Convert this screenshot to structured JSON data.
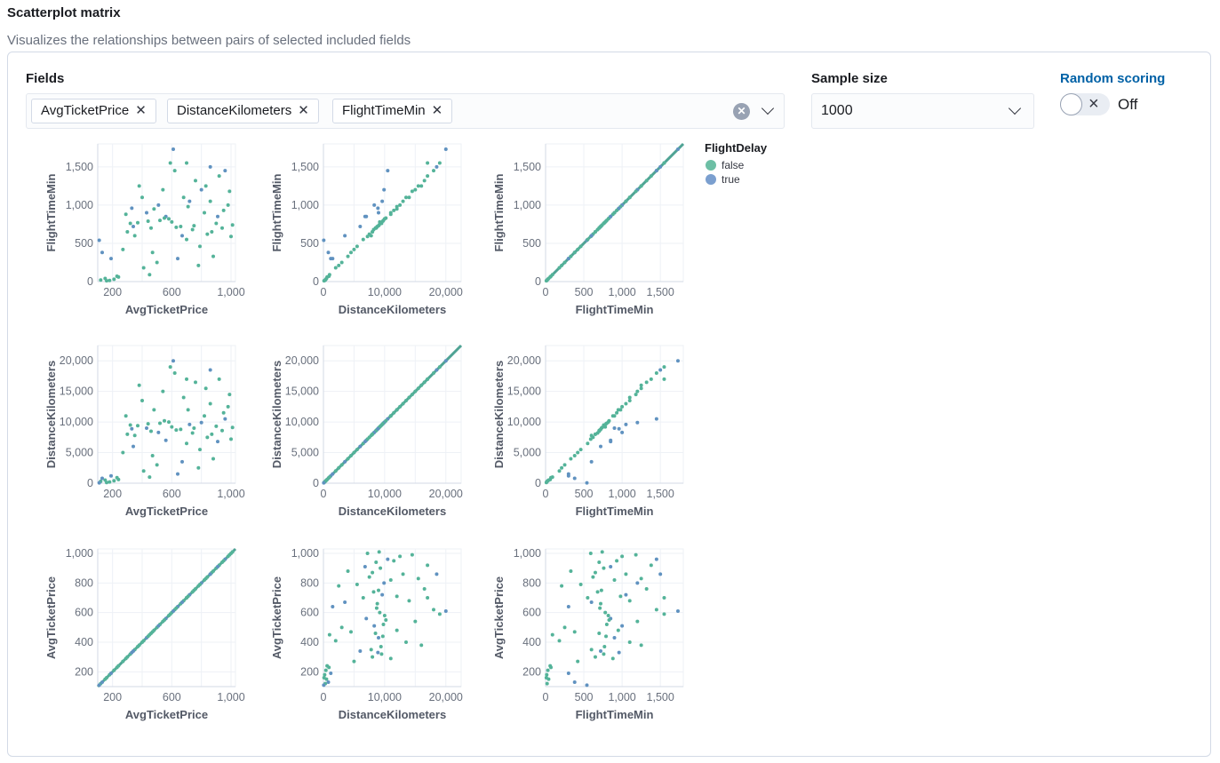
{
  "header": {
    "title": "Scatterplot matrix",
    "description": "Visualizes the relationships between pairs of selected included fields"
  },
  "fields": {
    "label": "Fields",
    "selected": [
      "AvgTicketPrice",
      "DistanceKilometers",
      "FlightTimeMin"
    ]
  },
  "sample_size": {
    "label": "Sample size",
    "value": "1000"
  },
  "random_scoring": {
    "label": "Random scoring",
    "state": "Off",
    "enabled": false
  },
  "chart_data": {
    "type": "scatter",
    "legend": {
      "title": "FlightDelay",
      "position": "top-right",
      "entries": [
        {
          "name": "false",
          "color": "#54B399"
        },
        {
          "name": "true",
          "color": "#6092C0"
        }
      ]
    },
    "grid": true,
    "variables": {
      "AvgTicketPrice": {
        "range": [
          100,
          1030
        ],
        "x_ticks": [
          200,
          600,
          1000
        ],
        "y_ticks": [
          200,
          400,
          600,
          800,
          1000
        ],
        "grid": [
          200,
          400,
          600,
          800,
          1000
        ]
      },
      "DistanceKilometers": {
        "range": [
          0,
          22500
        ],
        "x_ticks": [
          0,
          10000,
          20000
        ],
        "y_ticks": [
          0,
          5000,
          10000,
          15000,
          20000
        ],
        "grid": [
          0,
          5000,
          10000,
          15000,
          20000
        ]
      },
      "FlightTimeMin": {
        "range": [
          0,
          1800
        ],
        "x_ticks": [
          0,
          500,
          1000,
          1500
        ],
        "y_ticks": [
          0,
          500,
          1000,
          1500
        ],
        "grid": [
          0,
          500,
          1000,
          1500
        ]
      }
    },
    "rows": [
      "FlightTimeMin",
      "DistanceKilometers",
      "AvgTicketPrice"
    ],
    "columns": [
      "AvgTicketPrice",
      "DistanceKilometers",
      "FlightTimeMin"
    ],
    "record_fields": [
      "AvgTicketPrice",
      "DistanceKilometers",
      "FlightTimeMin",
      "FlightDelay"
    ],
    "records": [
      [
        120,
        300,
        20,
        "false"
      ],
      [
        150,
        500,
        40,
        "false"
      ],
      [
        180,
        200,
        15,
        "false"
      ],
      [
        130,
        800,
        380,
        "true"
      ],
      [
        210,
        400,
        30,
        "false"
      ],
      [
        240,
        600,
        60,
        "false"
      ],
      [
        160,
        100,
        10,
        "false"
      ],
      [
        110,
        50,
        540,
        "true"
      ],
      [
        190,
        1200,
        300,
        "true"
      ],
      [
        230,
        900,
        70,
        "false"
      ],
      [
        300,
        8000,
        650,
        "false"
      ],
      [
        320,
        9500,
        760,
        "false"
      ],
      [
        350,
        7800,
        600,
        "false"
      ],
      [
        380,
        16000,
        1250,
        "false"
      ],
      [
        410,
        2000,
        180,
        "false"
      ],
      [
        430,
        9000,
        900,
        "true"
      ],
      [
        460,
        8500,
        700,
        "false"
      ],
      [
        480,
        12000,
        950,
        "false"
      ],
      [
        500,
        3000,
        250,
        "false"
      ],
      [
        520,
        9800,
        800,
        "false"
      ],
      [
        540,
        15000,
        1200,
        "false"
      ],
      [
        560,
        7000,
        850,
        "true"
      ],
      [
        580,
        10000,
        820,
        "false"
      ],
      [
        600,
        9200,
        780,
        "false"
      ],
      [
        620,
        18000,
        1450,
        "false"
      ],
      [
        640,
        1500,
        300,
        "true"
      ],
      [
        660,
        8800,
        720,
        "false"
      ],
      [
        680,
        14000,
        1100,
        "false"
      ],
      [
        700,
        6500,
        550,
        "false"
      ],
      [
        720,
        9600,
        1050,
        "true"
      ],
      [
        740,
        8200,
        680,
        "false"
      ],
      [
        760,
        16500,
        1320,
        "false"
      ],
      [
        780,
        2500,
        210,
        "false"
      ],
      [
        800,
        9900,
        1200,
        "true"
      ],
      [
        820,
        11000,
        900,
        "false"
      ],
      [
        840,
        7500,
        620,
        "false"
      ],
      [
        860,
        13000,
        1050,
        "false"
      ],
      [
        880,
        4000,
        330,
        "false"
      ],
      [
        900,
        9300,
        760,
        "false"
      ],
      [
        920,
        17000,
        1380,
        "false"
      ],
      [
        940,
        8600,
        700,
        "false"
      ],
      [
        960,
        10500,
        1450,
        "true"
      ],
      [
        980,
        12500,
        1000,
        "false"
      ],
      [
        1000,
        7200,
        590,
        "false"
      ],
      [
        1010,
        9100,
        740,
        "false"
      ],
      [
        270,
        5000,
        420,
        "false"
      ],
      [
        290,
        11000,
        880,
        "false"
      ],
      [
        340,
        6000,
        720,
        "true"
      ],
      [
        370,
        9400,
        770,
        "false"
      ],
      [
        400,
        13500,
        1100,
        "false"
      ],
      [
        440,
        9700,
        790,
        "false"
      ],
      [
        470,
        4500,
        380,
        "false"
      ],
      [
        510,
        8300,
        1000,
        "true"
      ],
      [
        550,
        10200,
        830,
        "false"
      ],
      [
        590,
        19000,
        1550,
        "false"
      ],
      [
        630,
        8700,
        710,
        "false"
      ],
      [
        670,
        3500,
        600,
        "true"
      ],
      [
        710,
        12000,
        980,
        "false"
      ],
      [
        750,
        9000,
        730,
        "false"
      ],
      [
        790,
        5500,
        460,
        "false"
      ],
      [
        830,
        15500,
        1250,
        "false"
      ],
      [
        870,
        8000,
        650,
        "false"
      ],
      [
        910,
        6800,
        850,
        "true"
      ],
      [
        950,
        11500,
        930,
        "false"
      ],
      [
        990,
        14500,
        1180,
        "false"
      ],
      [
        610,
        20000,
        1730,
        "true"
      ],
      [
        700,
        17000,
        1550,
        "false"
      ],
      [
        860,
        18500,
        1500,
        "true"
      ],
      [
        450,
        1000,
        90,
        "false"
      ],
      [
        330,
        8900,
        960,
        "true"
      ]
    ]
  }
}
